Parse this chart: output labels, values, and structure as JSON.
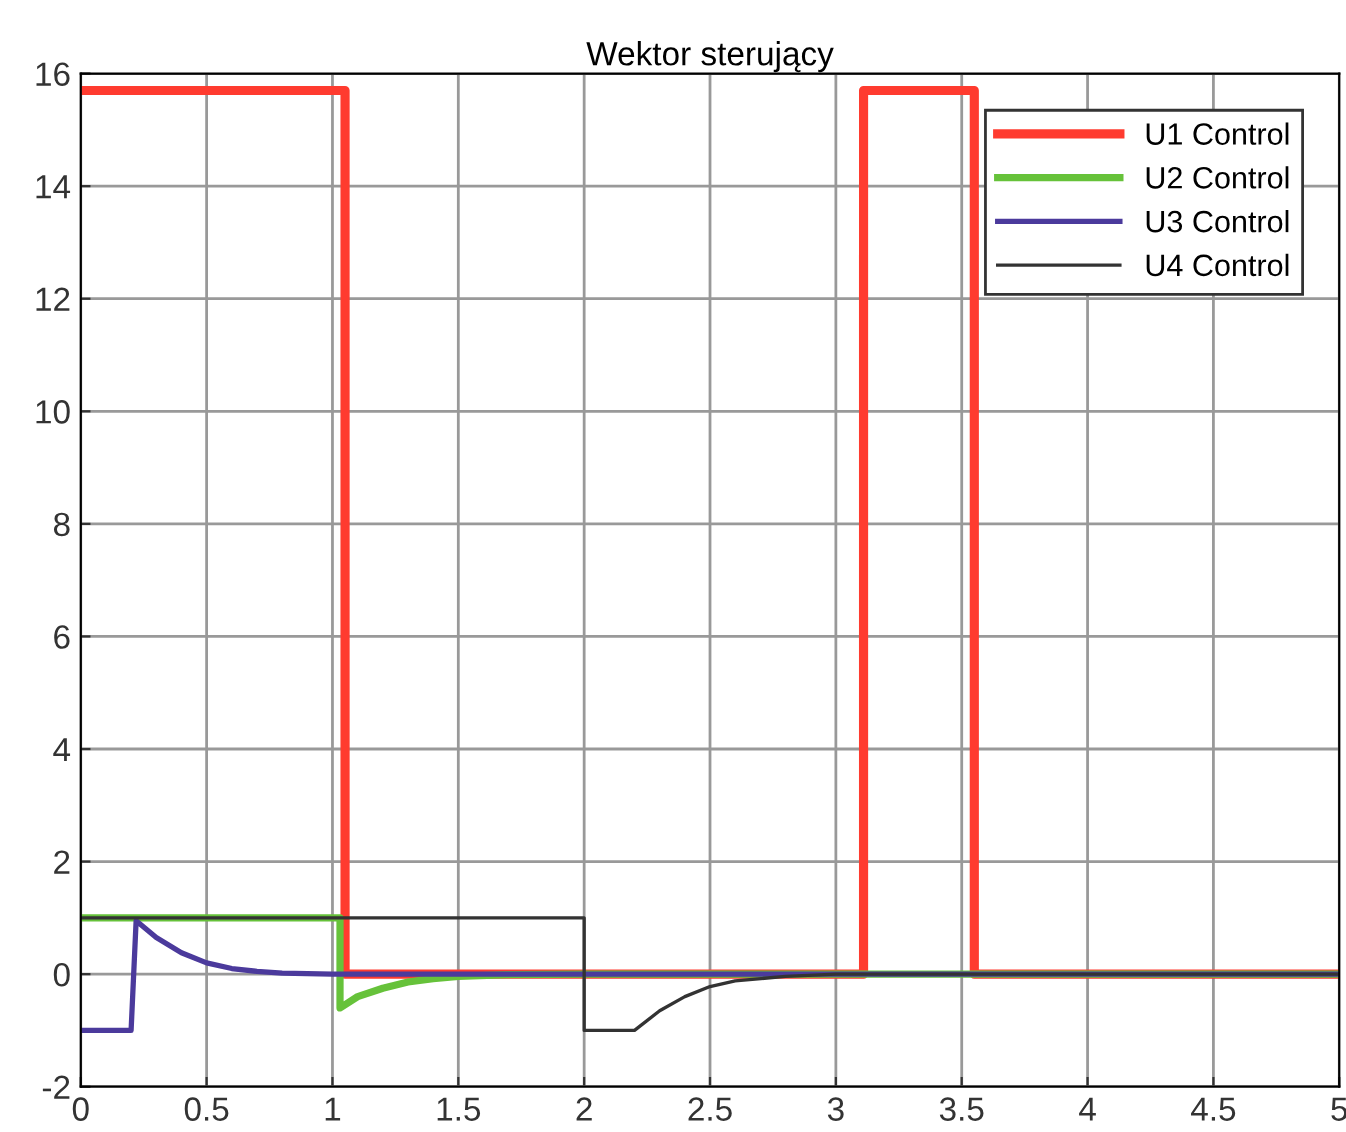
{
  "chart_data": {
    "type": "line",
    "title": "Wektor sterujący",
    "series": [
      {
        "name": "U1 Control",
        "color": "#ff3b2f",
        "x": [
          0,
          1.05,
          1.05,
          3.11,
          3.11,
          3.55,
          3.55,
          5
        ],
        "values": [
          15.7,
          15.7,
          0,
          0,
          15.7,
          15.7,
          0,
          0
        ]
      },
      {
        "name": "U2 Control",
        "color": "#66c23a",
        "x": [
          0,
          1.03,
          1.03,
          1.1,
          1.2,
          1.3,
          1.4,
          1.5,
          1.7,
          2,
          5
        ],
        "values": [
          1,
          1,
          -0.6,
          -0.4,
          -0.25,
          -0.14,
          -0.08,
          -0.04,
          -0.01,
          0,
          0
        ]
      },
      {
        "name": "U3 Control",
        "color": "#4b3a9c",
        "x": [
          0,
          0.2,
          0.22,
          0.3,
          0.4,
          0.5,
          0.6,
          0.7,
          0.8,
          1,
          5
        ],
        "values": [
          -1,
          -1,
          0.95,
          0.65,
          0.38,
          0.2,
          0.1,
          0.05,
          0.02,
          0,
          0
        ]
      },
      {
        "name": "U4 Control",
        "color": "#333333",
        "x": [
          0,
          2,
          2,
          2.2,
          2.3,
          2.4,
          2.5,
          2.6,
          2.8,
          3,
          5
        ],
        "values": [
          1,
          1,
          -1,
          -1,
          -0.65,
          -0.4,
          -0.22,
          -0.12,
          -0.04,
          0,
          0
        ]
      }
    ],
    "xlim": [
      0,
      5
    ],
    "ylim": [
      -2,
      16
    ],
    "xticks": [
      0,
      0.5,
      1,
      1.5,
      2,
      2.5,
      3,
      3.5,
      4,
      4.5,
      5
    ],
    "yticks": [
      -2,
      0,
      2,
      4,
      6,
      8,
      10,
      12,
      14,
      16
    ],
    "grid": true,
    "legend": "top right"
  }
}
